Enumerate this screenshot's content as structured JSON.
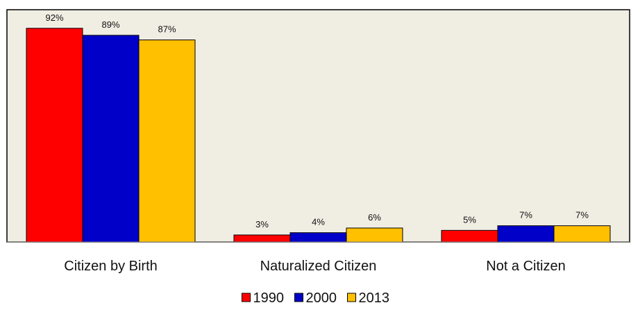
{
  "chart_data": {
    "type": "bar",
    "categories": [
      "Citizen by Birth",
      "Naturalized Citizen",
      "Not a Citizen"
    ],
    "series": [
      {
        "name": "1990",
        "values": [
          92,
          3,
          5
        ],
        "labels": [
          "92%",
          "3%",
          "5%"
        ],
        "color": "#ff0000"
      },
      {
        "name": "2000",
        "values": [
          89,
          4,
          7
        ],
        "labels": [
          "89%",
          "4%",
          "7%"
        ],
        "color": "#0000c8"
      },
      {
        "name": "2013",
        "values": [
          87,
          6,
          7
        ],
        "labels": [
          "87%",
          "6%",
          "7%"
        ],
        "color": "#ffc000"
      }
    ],
    "ylim": [
      0,
      100
    ],
    "grid": false,
    "legend_position": "bottom",
    "plot_background": "#f0ede3"
  }
}
